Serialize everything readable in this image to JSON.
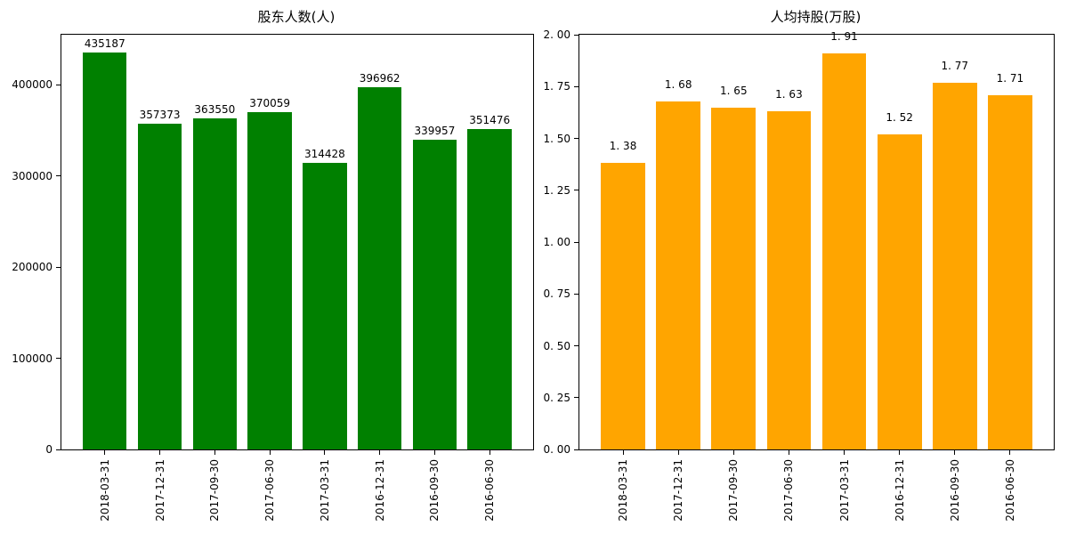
{
  "figure": {
    "background": "#ffffff",
    "text_color": "#000000"
  },
  "chart_data": [
    {
      "type": "bar",
      "title": "股东人数(人)",
      "categories": [
        "2018-03-31",
        "2017-12-31",
        "2017-09-30",
        "2017-06-30",
        "2017-03-31",
        "2016-12-31",
        "2016-09-30",
        "2016-06-30"
      ],
      "values": [
        435187,
        357373,
        363550,
        370059,
        314428,
        396962,
        339957,
        351476
      ],
      "bar_labels": [
        "435187",
        "357373",
        "363550",
        "370059",
        "314428",
        "396962",
        "339957",
        "351476"
      ],
      "bar_color": "#008000",
      "xlabel": "",
      "ylabel": "",
      "ylim": [
        0,
        455000
      ],
      "yticks": [
        {
          "value": 0,
          "label": "0"
        },
        {
          "value": 100000,
          "label": "100000"
        },
        {
          "value": 200000,
          "label": "200000"
        },
        {
          "value": 300000,
          "label": "300000"
        },
        {
          "value": 400000,
          "label": "400000"
        }
      ],
      "grid": false,
      "legend": "none",
      "bar_label_position": "above",
      "xtick_rotation_deg": 90
    },
    {
      "type": "bar",
      "title": "人均持股(万股)",
      "categories": [
        "2018-03-31",
        "2017-12-31",
        "2017-09-30",
        "2017-06-30",
        "2017-03-31",
        "2016-12-31",
        "2016-09-30",
        "2016-06-30"
      ],
      "values": [
        1.38,
        1.68,
        1.65,
        1.63,
        1.91,
        1.52,
        1.77,
        1.71
      ],
      "bar_labels": [
        "1. 38",
        "1. 68",
        "1. 65",
        "1. 63",
        "1. 91",
        "1. 52",
        "1. 77",
        "1. 71"
      ],
      "bar_color": "#FFA500",
      "xlabel": "",
      "ylabel": "",
      "ylim": [
        0,
        2.0
      ],
      "yticks": [
        {
          "value": 0,
          "label": "0. 00"
        },
        {
          "value": 0.25,
          "label": "0. 25"
        },
        {
          "value": 0.5,
          "label": "0. 50"
        },
        {
          "value": 0.75,
          "label": "0. 75"
        },
        {
          "value": 1.0,
          "label": "1. 00"
        },
        {
          "value": 1.25,
          "label": "1. 25"
        },
        {
          "value": 1.5,
          "label": "1. 50"
        },
        {
          "value": 1.75,
          "label": "1. 75"
        },
        {
          "value": 2.0,
          "label": "2. 00"
        }
      ],
      "grid": false,
      "legend": "none",
      "bar_label_position": "above",
      "xtick_rotation_deg": 90
    }
  ]
}
